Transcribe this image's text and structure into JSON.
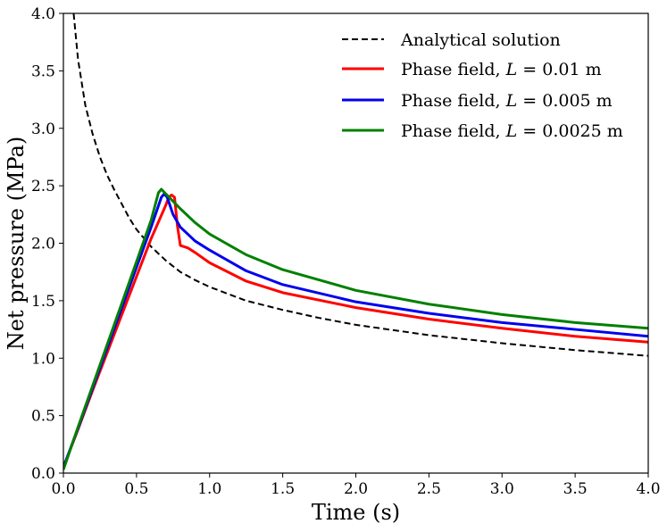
{
  "chart_data": {
    "type": "line",
    "title": "",
    "xlabel": "Time (s)",
    "ylabel": "Net pressure (MPa)",
    "xlim": [
      0.0,
      4.0
    ],
    "ylim": [
      0.0,
      4.0
    ],
    "xticks": [
      "0.0",
      "0.5",
      "1.0",
      "1.5",
      "2.0",
      "2.5",
      "3.0",
      "3.5",
      "4.0"
    ],
    "yticks": [
      "0.0",
      "0.5",
      "1.0",
      "1.5",
      "2.0",
      "2.5",
      "3.0",
      "3.5",
      "4.0"
    ],
    "legend_position": "top-right",
    "series": [
      {
        "name": "Analytical solution",
        "legend_label": "Analytical solution",
        "color": "#000000",
        "dash": "dashed",
        "x": [
          0.07,
          0.1,
          0.15,
          0.2,
          0.25,
          0.3,
          0.35,
          0.4,
          0.45,
          0.5,
          0.6,
          0.7,
          0.8,
          0.9,
          1.0,
          1.25,
          1.5,
          1.75,
          2.0,
          2.5,
          3.0,
          3.5,
          4.0
        ],
        "y": [
          4.0,
          3.6,
          3.2,
          2.95,
          2.75,
          2.59,
          2.46,
          2.34,
          2.22,
          2.12,
          1.97,
          1.85,
          1.75,
          1.68,
          1.62,
          1.5,
          1.42,
          1.35,
          1.29,
          1.2,
          1.13,
          1.07,
          1.02
        ]
      },
      {
        "name": "Phase field, L = 0.01 m",
        "legend_prefix": "Phase field, ",
        "legend_var": "L",
        "legend_suffix": " = 0.01 m",
        "color": "#ff0000",
        "dash": "solid",
        "x": [
          0.0,
          0.1,
          0.2,
          0.3,
          0.4,
          0.5,
          0.6,
          0.7,
          0.72,
          0.74,
          0.76,
          0.78,
          0.8,
          0.85,
          0.9,
          1.0,
          1.25,
          1.5,
          2.0,
          2.5,
          3.0,
          3.5,
          4.0
        ],
        "y": [
          0.05,
          0.38,
          0.72,
          1.05,
          1.38,
          1.71,
          2.04,
          2.33,
          2.4,
          2.42,
          2.4,
          2.15,
          1.98,
          1.96,
          1.92,
          1.83,
          1.67,
          1.57,
          1.44,
          1.34,
          1.26,
          1.19,
          1.14
        ]
      },
      {
        "name": "Phase field, L = 0.005 m",
        "legend_prefix": "Phase field, ",
        "legend_var": "L",
        "legend_suffix": " = 0.005 m",
        "color": "#0000ee",
        "dash": "solid",
        "x": [
          0.0,
          0.1,
          0.2,
          0.3,
          0.4,
          0.5,
          0.6,
          0.67,
          0.69,
          0.71,
          0.75,
          0.8,
          0.9,
          1.0,
          1.25,
          1.5,
          2.0,
          2.5,
          3.0,
          3.5,
          4.0
        ],
        "y": [
          0.05,
          0.39,
          0.74,
          1.09,
          1.44,
          1.79,
          2.14,
          2.4,
          2.43,
          2.4,
          2.25,
          2.14,
          2.02,
          1.94,
          1.76,
          1.64,
          1.49,
          1.39,
          1.31,
          1.25,
          1.19
        ]
      },
      {
        "name": "Phase field, L = 0.0025 m",
        "legend_prefix": "Phase field, ",
        "legend_var": "L",
        "legend_suffix": " = 0.0025 m",
        "color": "#008000",
        "dash": "solid",
        "x": [
          0.0,
          0.1,
          0.2,
          0.3,
          0.4,
          0.5,
          0.6,
          0.65,
          0.67,
          0.7,
          0.8,
          0.9,
          1.0,
          1.25,
          1.5,
          2.0,
          2.5,
          3.0,
          3.5,
          4.0
        ],
        "y": [
          0.03,
          0.4,
          0.76,
          1.12,
          1.48,
          1.84,
          2.2,
          2.44,
          2.47,
          2.43,
          2.3,
          2.18,
          2.08,
          1.9,
          1.77,
          1.59,
          1.47,
          1.38,
          1.31,
          1.26
        ]
      }
    ]
  }
}
